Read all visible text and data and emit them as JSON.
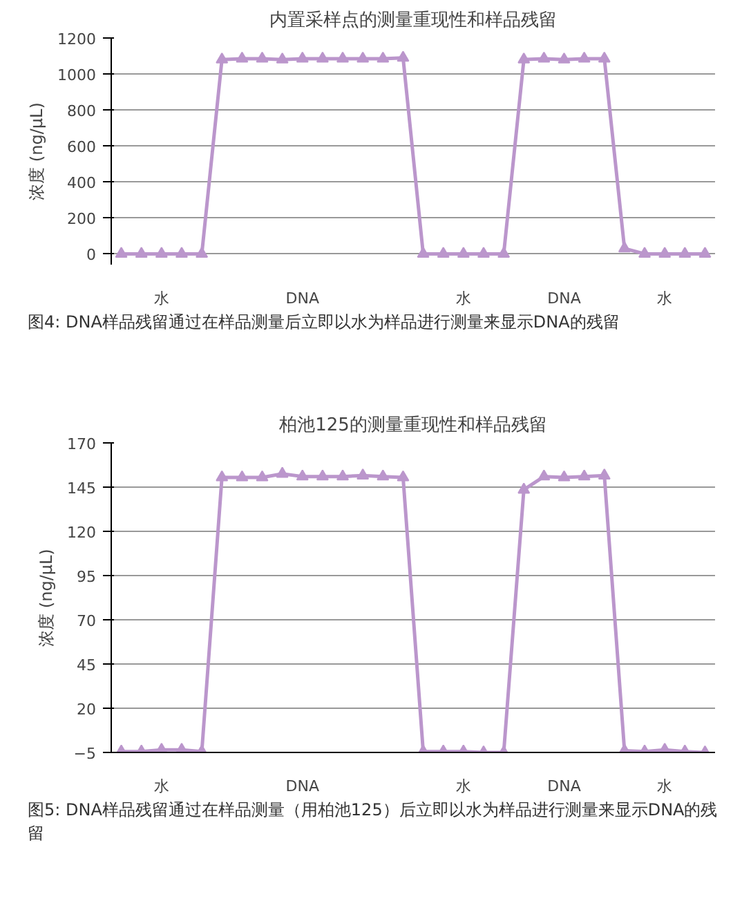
{
  "chart_data": [
    {
      "type": "line",
      "title": "内置采样点的测量重现性和样品残留",
      "ylabel": "浓度 (ng/μL)",
      "categories": [
        null,
        null,
        "水",
        null,
        null,
        null,
        null,
        null,
        null,
        "DNA",
        null,
        null,
        null,
        null,
        null,
        null,
        null,
        "水",
        null,
        null,
        null,
        null,
        "DNA",
        null,
        null,
        null,
        null,
        "水",
        null,
        null
      ],
      "series": [
        {
          "color": "#bb96cc",
          "values": [
            0,
            0,
            0,
            0,
            0,
            1080,
            1085,
            1085,
            1080,
            1085,
            1085,
            1085,
            1085,
            1085,
            1090,
            0,
            0,
            0,
            0,
            0,
            1080,
            1085,
            1080,
            1085,
            1085,
            30,
            0,
            0,
            0,
            0
          ]
        }
      ],
      "ylim": [
        -60,
        1200
      ],
      "yticks": [
        0,
        200,
        400,
        600,
        800,
        1000,
        1200
      ],
      "grid": "y",
      "marker": "triangle",
      "line_style": "solid",
      "annotations": [
        "图4: DNA样品残留通过在样品测量后立即以水为样品进行测量来显示DNA的残留"
      ]
    },
    {
      "type": "line",
      "title": "柏池125的测量重现性和样品残留",
      "ylabel": "浓度 (ng/μL)",
      "categories": [
        null,
        null,
        "水",
        null,
        null,
        null,
        null,
        null,
        null,
        "DNA",
        null,
        null,
        null,
        null,
        null,
        null,
        null,
        "水",
        null,
        null,
        null,
        null,
        "DNA",
        null,
        null,
        null,
        null,
        "水",
        null,
        null
      ],
      "series": [
        {
          "color": "#bb96cc",
          "values": [
            -4.5,
            -4.5,
            -3.5,
            -3.5,
            -4.5,
            150.5,
            150.5,
            150.5,
            152.5,
            151,
            151,
            151,
            151.5,
            151,
            150.5,
            -4.5,
            -4.5,
            -4.5,
            -5,
            -5,
            143.5,
            151,
            150.5,
            151,
            151.5,
            -4,
            -4.5,
            -3.5,
            -4.5,
            -5
          ]
        }
      ],
      "ylim": [
        -5,
        170
      ],
      "yticks": [
        -5,
        20,
        45,
        70,
        95,
        120,
        145,
        170
      ],
      "grid": "y",
      "marker": "triangle",
      "line_style": "solid",
      "annotations": [
        "图5: DNA样品残留通过在样品测量（用柏池125）后立即以水为样品进行测量来显示DNA的残留"
      ]
    }
  ]
}
